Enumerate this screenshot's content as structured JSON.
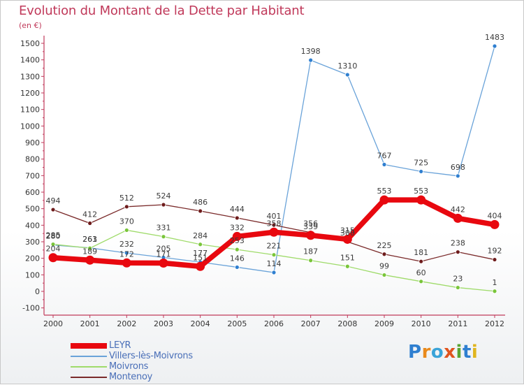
{
  "chart_data": {
    "type": "line",
    "title": "Evolution du Montant de la Dette par Habitant",
    "unit_label": "(en €)",
    "x": [
      "2000",
      "2001",
      "2002",
      "2003",
      "2004",
      "2005",
      "2006",
      "2007",
      "2008",
      "2009",
      "2010",
      "2011",
      "2012"
    ],
    "ylim": [
      -100,
      1500
    ],
    "yticks": [
      -100,
      0,
      100,
      200,
      300,
      400,
      500,
      600,
      700,
      800,
      900,
      1000,
      1100,
      1200,
      1300,
      1400,
      1500
    ],
    "grid": false,
    "series": [
      {
        "name": "LEYR",
        "color": "#e8080f",
        "values": [
          204,
          189,
          172,
          171,
          151,
          332,
          358,
          339,
          315,
          553,
          553,
          442,
          404
        ]
      },
      {
        "name": "Villers-lès-Moivrons",
        "color": "#6aa3d9",
        "values": [
          280,
          263,
          232,
          205,
          177,
          146,
          114,
          1398,
          1310,
          767,
          725,
          698,
          1483
        ]
      },
      {
        "name": "Moivrons",
        "color": "#9fdb6a",
        "values": [
          285,
          261,
          370,
          331,
          284,
          253,
          221,
          187,
          151,
          99,
          60,
          23,
          1
        ]
      },
      {
        "name": "Montenoy",
        "color": "#7a2a2a",
        "values": [
          494,
          412,
          512,
          524,
          486,
          444,
          401,
          356,
          300,
          225,
          181,
          238,
          192
        ]
      }
    ]
  },
  "logo": {
    "text": "Proxiti"
  }
}
